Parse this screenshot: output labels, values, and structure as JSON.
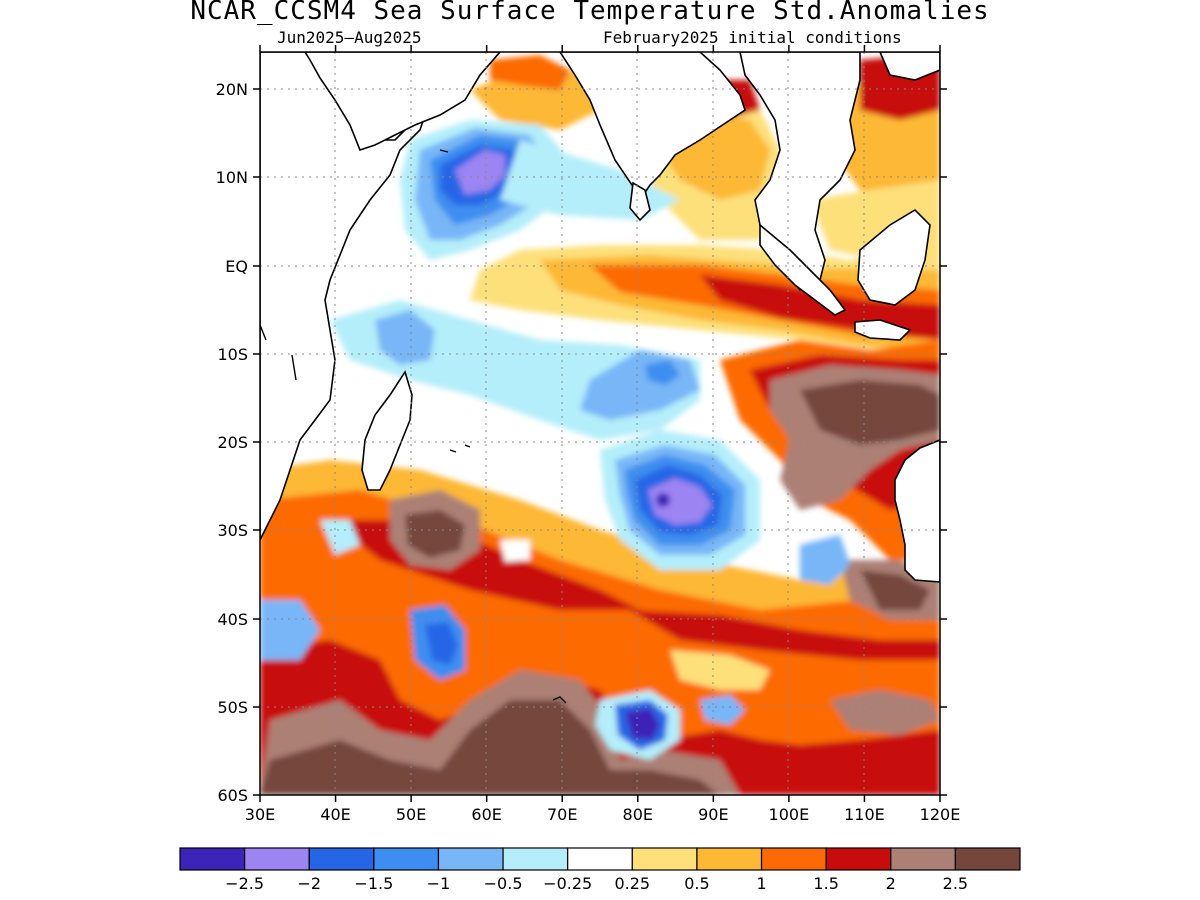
{
  "header": {
    "title": "NCAR_CCSM4 Sea Surface Temperature Std.Anomalies",
    "period": "Jun2025–Aug2025",
    "init": "February2025 initial conditions"
  },
  "axes": {
    "lat_ticks": [
      "20N",
      "10N",
      "EQ",
      "10S",
      "20S",
      "30S",
      "40S",
      "50S",
      "60S"
    ],
    "lon_ticks": [
      "30E",
      "40E",
      "50E",
      "60E",
      "70E",
      "80E",
      "90E",
      "100E",
      "110E",
      "120E"
    ]
  },
  "legend": {
    "colors": [
      "#3c24b8",
      "#9c84f2",
      "#2566e6",
      "#3d8ef0",
      "#78b6f7",
      "#b4eefa",
      "#ffffff",
      "#fde07a",
      "#fdb836",
      "#fc6a06",
      "#c80c0c",
      "#ac8075",
      "#75473c"
    ],
    "labels": [
      "−2.5",
      "−2",
      "−1.5",
      "−1",
      "−0.5",
      "−0.25",
      "0.25",
      "0.5",
      "1",
      "1.5",
      "2",
      "2.5"
    ]
  }
}
